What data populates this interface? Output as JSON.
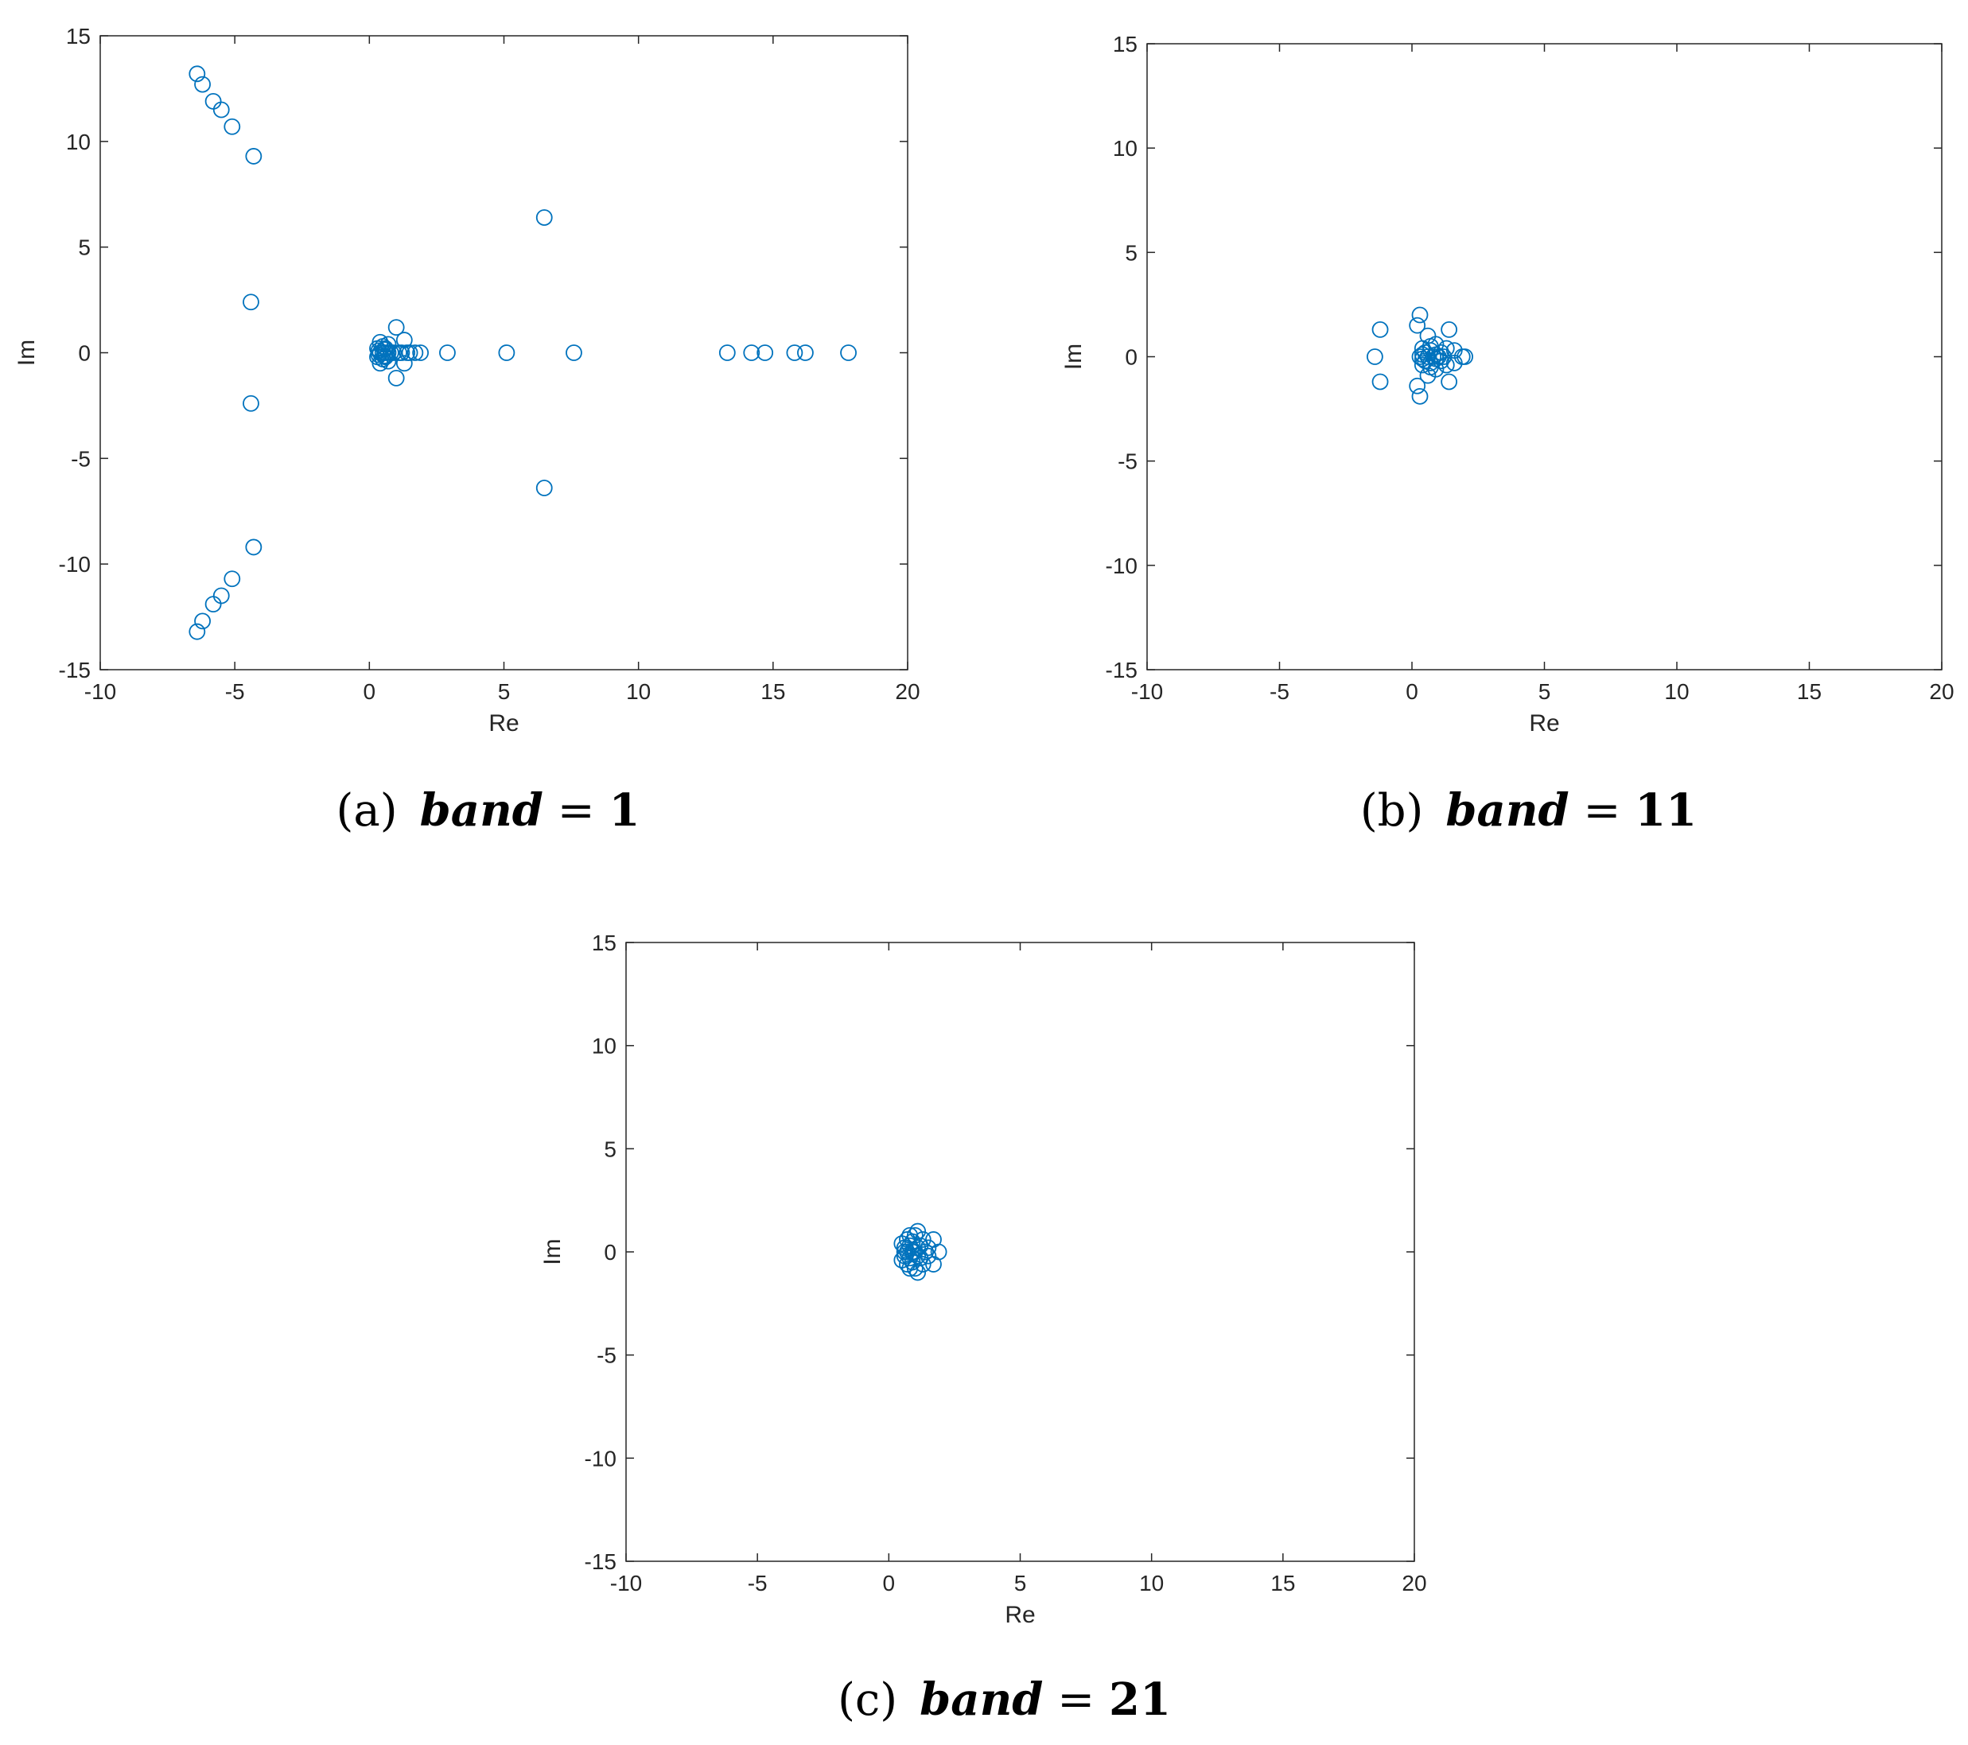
{
  "colors": {
    "marker": "#0072BD",
    "axis": "#262626"
  },
  "chart_data": [
    {
      "type": "scatter",
      "title": "",
      "xlabel": "Re",
      "ylabel": "Im",
      "xlim": [
        -10,
        20
      ],
      "ylim": [
        -15,
        15
      ],
      "xticks": [
        -10,
        -5,
        0,
        5,
        10,
        15,
        20
      ],
      "yticks": [
        -15,
        -10,
        -5,
        0,
        5,
        10,
        15
      ],
      "grid": false,
      "marker": "open-circle",
      "caption": {
        "tag": "(a)",
        "var": "band",
        "eq": "=",
        "value": "1"
      },
      "points": [
        [
          -6.4,
          13.2
        ],
        [
          -6.2,
          12.7
        ],
        [
          -5.8,
          11.9
        ],
        [
          -5.5,
          11.5
        ],
        [
          -5.1,
          10.7
        ],
        [
          -4.3,
          9.3
        ],
        [
          -6.4,
          -13.2
        ],
        [
          -6.2,
          -12.7
        ],
        [
          -5.8,
          -11.9
        ],
        [
          -5.5,
          -11.5
        ],
        [
          -5.1,
          -10.7
        ],
        [
          -4.3,
          -9.2
        ],
        [
          -4.4,
          2.4
        ],
        [
          -4.4,
          -2.4
        ],
        [
          6.5,
          6.4
        ],
        [
          6.5,
          -6.4
        ],
        [
          2.9,
          0
        ],
        [
          5.1,
          0
        ],
        [
          7.6,
          0
        ],
        [
          13.3,
          0
        ],
        [
          14.2,
          0
        ],
        [
          14.7,
          0
        ],
        [
          15.8,
          0
        ],
        [
          16.2,
          0
        ],
        [
          17.8,
          0
        ],
        [
          1.0,
          1.2
        ],
        [
          1.0,
          -1.2
        ],
        [
          1.3,
          0.6
        ],
        [
          1.3,
          -0.5
        ],
        [
          0.4,
          0.5
        ],
        [
          0.4,
          -0.5
        ],
        [
          0.5,
          0.3
        ],
        [
          0.5,
          -0.3
        ],
        [
          0.3,
          0.2
        ],
        [
          0.3,
          -0.2
        ],
        [
          0.6,
          0.2
        ],
        [
          0.6,
          -0.2
        ],
        [
          0.7,
          0.4
        ],
        [
          0.7,
          -0.4
        ],
        [
          0.4,
          0
        ],
        [
          0.5,
          0
        ],
        [
          0.6,
          0
        ],
        [
          0.7,
          0
        ],
        [
          0.8,
          0
        ],
        [
          0.9,
          0
        ],
        [
          1.1,
          0
        ],
        [
          1.2,
          0
        ],
        [
          1.4,
          0
        ],
        [
          1.5,
          0
        ],
        [
          1.7,
          0
        ],
        [
          1.9,
          0
        ],
        [
          0.35,
          0.1
        ],
        [
          0.35,
          -0.1
        ],
        [
          0.55,
          0.15
        ],
        [
          0.55,
          -0.15
        ]
      ]
    },
    {
      "type": "scatter",
      "title": "",
      "xlabel": "Re",
      "ylabel": "Im",
      "xlim": [
        -10,
        20
      ],
      "ylim": [
        -15,
        15
      ],
      "xticks": [
        -10,
        -5,
        0,
        5,
        10,
        15,
        20
      ],
      "yticks": [
        -15,
        -10,
        -5,
        0,
        5,
        10,
        15
      ],
      "grid": false,
      "marker": "open-circle",
      "caption": {
        "tag": "(b)",
        "var": "band",
        "eq": "=",
        "value": "11"
      },
      "points": [
        [
          -1.2,
          1.3
        ],
        [
          -1.2,
          -1.2
        ],
        [
          -1.4,
          0
        ],
        [
          0.3,
          2.0
        ],
        [
          0.3,
          -1.9
        ],
        [
          0.2,
          1.5
        ],
        [
          0.2,
          -1.4
        ],
        [
          1.4,
          1.3
        ],
        [
          1.4,
          -1.2
        ],
        [
          1.9,
          0
        ],
        [
          2.0,
          0
        ],
        [
          1.6,
          0.3
        ],
        [
          1.6,
          -0.3
        ],
        [
          0.6,
          1.0
        ],
        [
          0.6,
          -0.9
        ],
        [
          0.9,
          0.6
        ],
        [
          0.9,
          -0.6
        ],
        [
          0.4,
          0.4
        ],
        [
          0.4,
          -0.4
        ],
        [
          0.5,
          0.2
        ],
        [
          0.5,
          -0.2
        ],
        [
          0.7,
          0.3
        ],
        [
          0.7,
          -0.3
        ],
        [
          0.8,
          0
        ],
        [
          1.0,
          0
        ],
        [
          1.1,
          0.2
        ],
        [
          1.1,
          -0.2
        ],
        [
          1.3,
          0.4
        ],
        [
          1.3,
          -0.4
        ],
        [
          0.6,
          0
        ],
        [
          0.9,
          0.1
        ],
        [
          0.9,
          -0.1
        ],
        [
          1.2,
          0
        ],
        [
          0.3,
          0
        ],
        [
          0.4,
          0.1
        ],
        [
          0.4,
          -0.1
        ],
        [
          0.7,
          0.5
        ],
        [
          0.7,
          -0.5
        ]
      ]
    },
    {
      "type": "scatter",
      "title": "",
      "xlabel": "Re",
      "ylabel": "Im",
      "xlim": [
        -10,
        20
      ],
      "ylim": [
        -15,
        15
      ],
      "xticks": [
        -10,
        -5,
        0,
        5,
        10,
        15,
        20
      ],
      "yticks": [
        -15,
        -10,
        -5,
        0,
        5,
        10,
        15
      ],
      "grid": false,
      "marker": "open-circle",
      "caption": {
        "tag": "(c)",
        "var": "band",
        "eq": "=",
        "value": "21"
      },
      "points": [
        [
          1.9,
          0
        ],
        [
          1.7,
          0.6
        ],
        [
          1.7,
          -0.6
        ],
        [
          1.1,
          1.0
        ],
        [
          1.1,
          -1.0
        ],
        [
          0.8,
          0.8
        ],
        [
          0.8,
          -0.8
        ],
        [
          0.5,
          0.4
        ],
        [
          0.5,
          -0.4
        ],
        [
          0.6,
          0.2
        ],
        [
          0.6,
          -0.2
        ],
        [
          0.7,
          0
        ],
        [
          0.8,
          0.3
        ],
        [
          0.8,
          -0.3
        ],
        [
          0.9,
          0.5
        ],
        [
          0.9,
          -0.5
        ],
        [
          1.0,
          0
        ],
        [
          1.2,
          0.3
        ],
        [
          1.2,
          -0.3
        ],
        [
          1.3,
          0.6
        ],
        [
          1.3,
          -0.6
        ],
        [
          1.4,
          0
        ],
        [
          0.6,
          0
        ],
        [
          0.9,
          0
        ],
        [
          1.1,
          0.2
        ],
        [
          1.1,
          -0.2
        ],
        [
          0.7,
          0.6
        ],
        [
          0.7,
          -0.6
        ],
        [
          1.0,
          0.8
        ],
        [
          1.0,
          -0.8
        ],
        [
          1.5,
          0.2
        ],
        [
          1.5,
          -0.2
        ]
      ]
    }
  ]
}
